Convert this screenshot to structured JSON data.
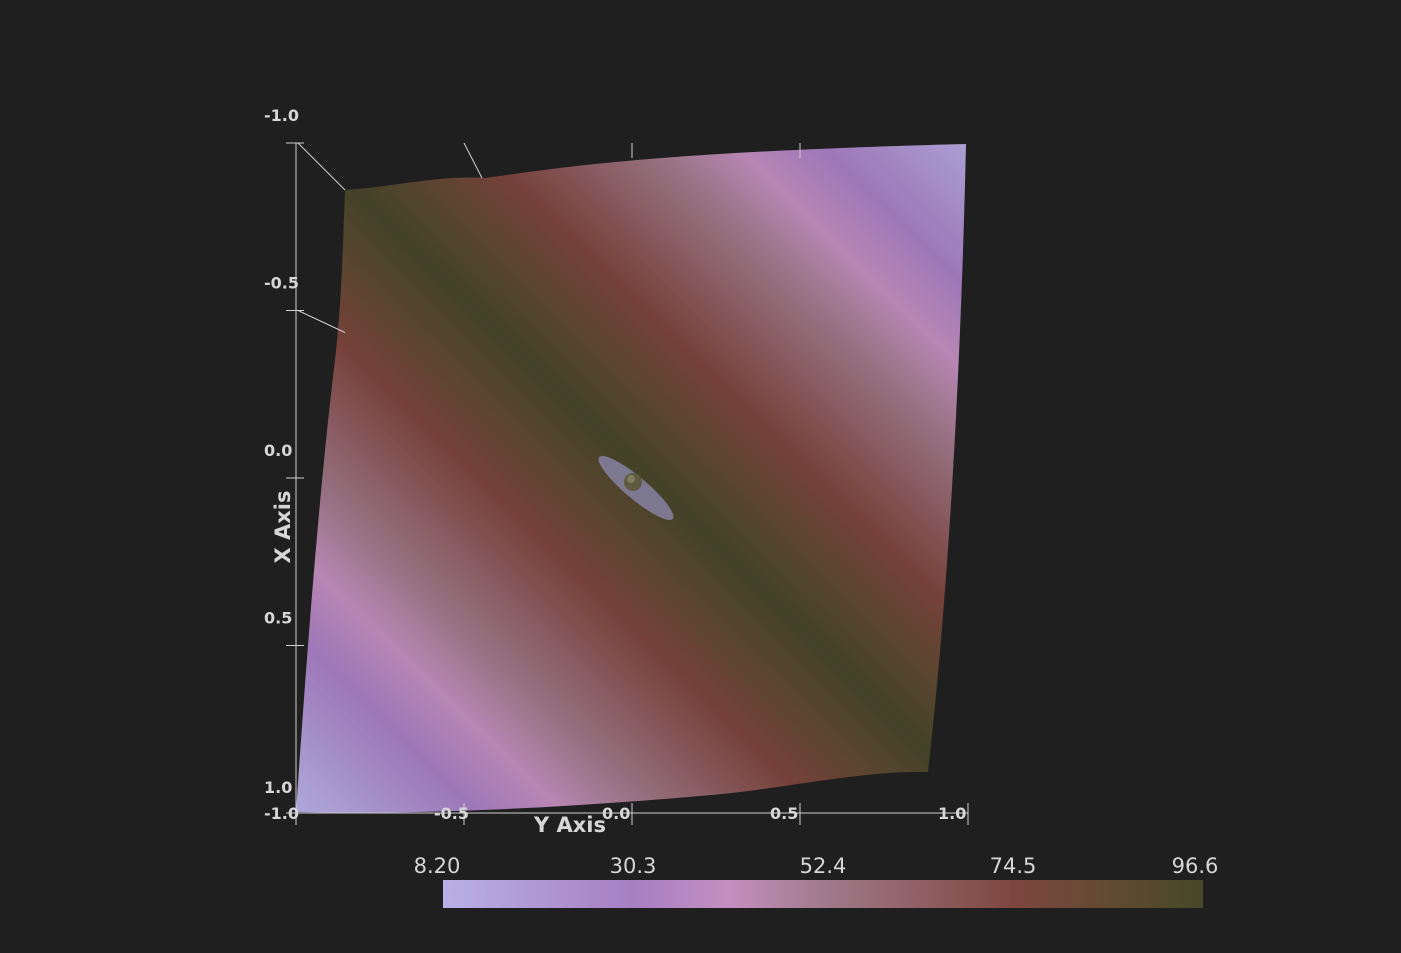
{
  "chart_data": {
    "type": "surface",
    "x_axis": {
      "label": "X Axis",
      "range": [
        -1.0,
        1.0
      ],
      "ticks": [
        -1.0,
        -0.5,
        0.0,
        0.5,
        1.0
      ],
      "tick_labels": [
        "-1.0",
        "-0.5",
        "0.0",
        "0.5",
        "1.0"
      ]
    },
    "y_axis": {
      "label": "Y Axis",
      "range": [
        -1.0,
        1.0
      ],
      "ticks": [
        -1.0,
        -0.5,
        0.0,
        0.5,
        1.0
      ],
      "tick_labels": [
        "-1.0",
        "-0.5",
        "0.0",
        "0.5",
        "1.0"
      ]
    },
    "scalar_bar": {
      "range": [
        8.2,
        96.6
      ],
      "tick_values": [
        8.2,
        30.3,
        52.4,
        74.5,
        96.6
      ],
      "tick_labels": [
        "8.20",
        "30.3",
        "52.4",
        "74.5",
        "96.6"
      ],
      "placement": "bottom",
      "colormap": [
        {
          "value": 8.2,
          "color": "#b8b0e6"
        },
        {
          "value": 30.3,
          "color": "#a77fc4"
        },
        {
          "value": 41.4,
          "color": "#c48fc0"
        },
        {
          "value": 52.4,
          "color": "#a27a8c"
        },
        {
          "value": 74.5,
          "color": "#7e463e"
        },
        {
          "value": 85.5,
          "color": "#624a34"
        },
        {
          "value": 96.6,
          "color": "#47472a"
        }
      ]
    },
    "marker": {
      "label_visible": false,
      "x": 0.0,
      "y": 0.0
    }
  },
  "colors": {
    "background": "#1f1f1f",
    "axis_line": "#cfcfcf",
    "text": "#d6d6d6"
  }
}
